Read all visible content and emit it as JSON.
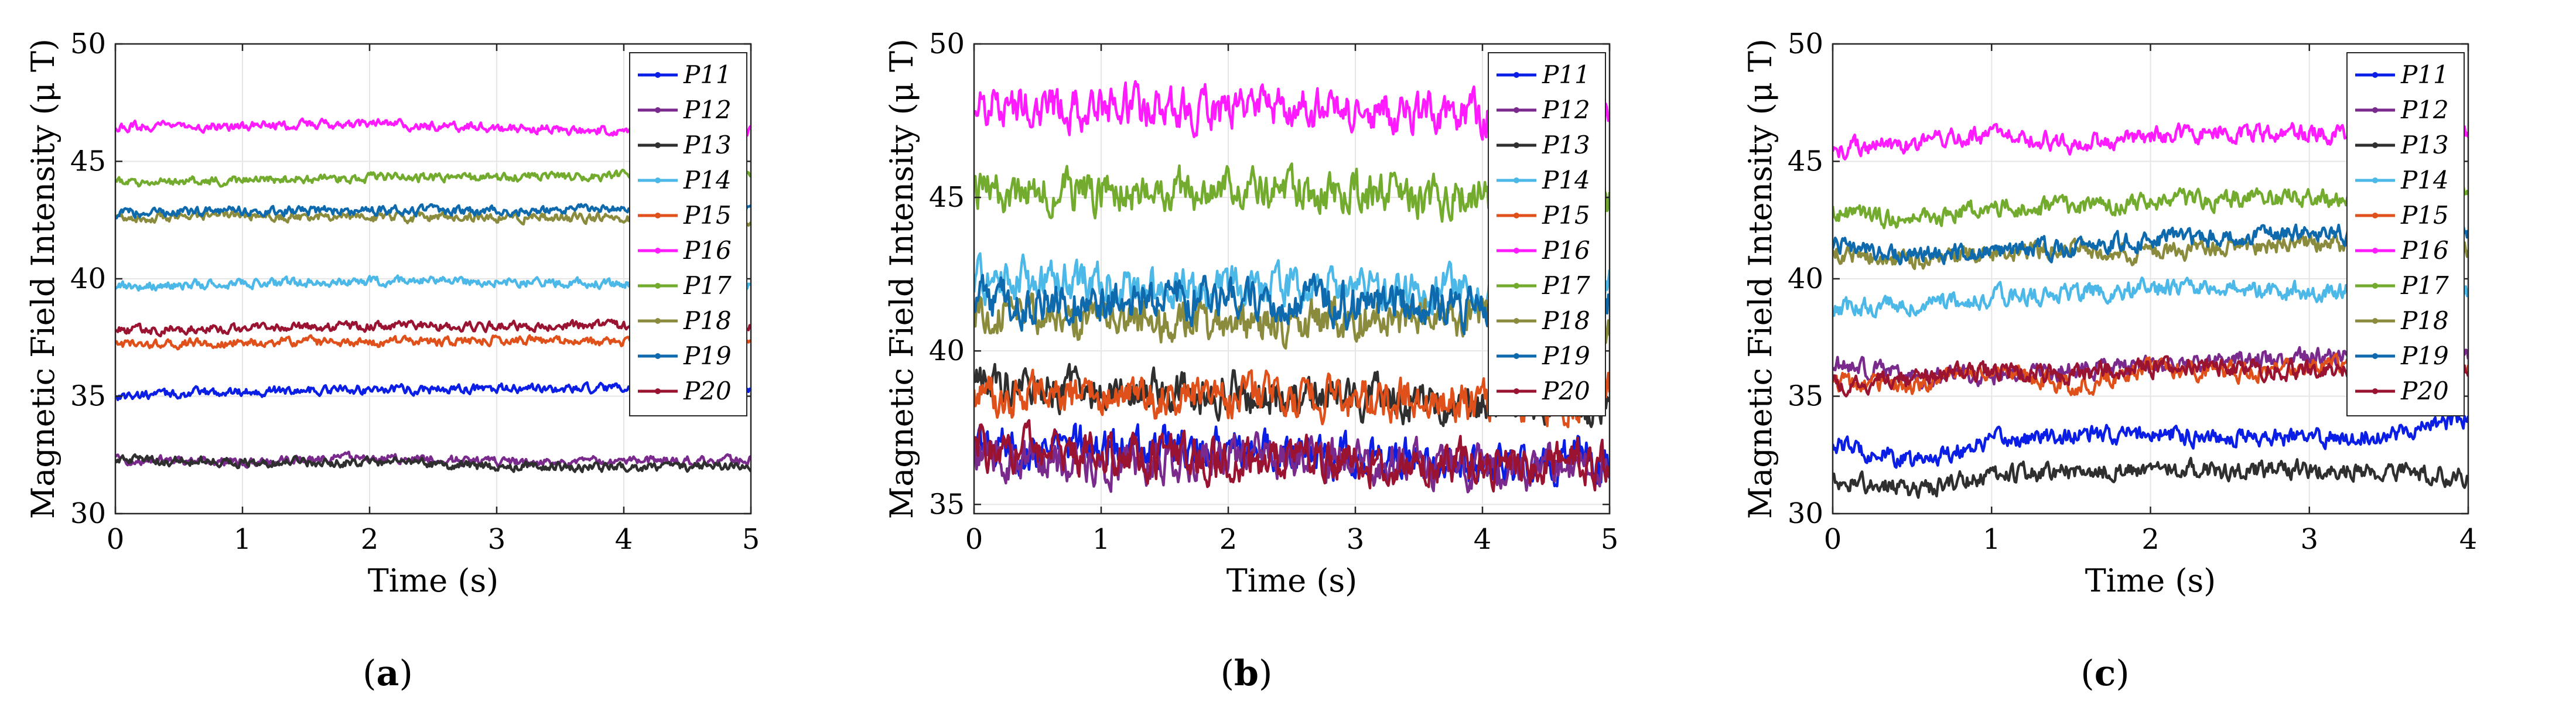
{
  "figure": {
    "captions": [
      "(a)",
      "(b)",
      "(c)"
    ],
    "caption_letters": [
      "a",
      "b",
      "c"
    ]
  },
  "series_styles": [
    {
      "name": "P11",
      "color": "#0a1ee6"
    },
    {
      "name": "P12",
      "color": "#7a2a8c"
    },
    {
      "name": "P13",
      "color": "#2f2f2f"
    },
    {
      "name": "P14",
      "color": "#4cb8e8"
    },
    {
      "name": "P15",
      "color": "#e0501a"
    },
    {
      "name": "P16",
      "color": "#ff1aff"
    },
    {
      "name": "P17",
      "color": "#72ab2d"
    },
    {
      "name": "P18",
      "color": "#8a8b3c"
    },
    {
      "name": "P19",
      "color": "#0e6aad"
    },
    {
      "name": "P20",
      "color": "#9a1432"
    }
  ],
  "chart_data": [
    {
      "type": "line",
      "panel": "a",
      "title": "",
      "xlabel": "Time (s)",
      "ylabel": "Magnetic Field Intensity (μ T)",
      "xlim": [
        0,
        5
      ],
      "ylim": [
        30,
        50
      ],
      "xticks": [
        "0",
        "1",
        "2",
        "3",
        "4",
        "5"
      ],
      "yticks": [
        "30",
        "35",
        "40",
        "45",
        "50"
      ],
      "grid": true,
      "legend_position": "top-right",
      "noise_amplitude": 0.35,
      "series": [
        {
          "name": "P11",
          "t": [
            0,
            1,
            2,
            3,
            4,
            5
          ],
          "values": [
            35.0,
            35.2,
            35.3,
            35.3,
            35.3,
            35.3
          ]
        },
        {
          "name": "P12",
          "t": [
            0,
            1,
            2,
            3,
            4,
            5
          ],
          "values": [
            32.3,
            32.2,
            32.4,
            32.2,
            32.2,
            32.3
          ]
        },
        {
          "name": "P13",
          "t": [
            0,
            1,
            2,
            3,
            4,
            5
          ],
          "values": [
            32.3,
            32.2,
            32.2,
            32.0,
            32.0,
            32.0
          ]
        },
        {
          "name": "P14",
          "t": [
            0,
            1,
            2,
            3,
            4,
            5
          ],
          "values": [
            39.7,
            39.8,
            39.9,
            39.9,
            39.8,
            39.8
          ]
        },
        {
          "name": "P15",
          "t": [
            0,
            1,
            2,
            3,
            4,
            5
          ],
          "values": [
            37.2,
            37.3,
            37.3,
            37.4,
            37.3,
            37.3
          ]
        },
        {
          "name": "P16",
          "t": [
            0,
            1,
            2,
            3,
            4,
            5
          ],
          "values": [
            46.5,
            46.5,
            46.6,
            46.4,
            46.3,
            46.3
          ]
        },
        {
          "name": "P17",
          "t": [
            0,
            1,
            2,
            3,
            4,
            5
          ],
          "values": [
            44.1,
            44.2,
            44.3,
            44.3,
            44.4,
            44.5
          ]
        },
        {
          "name": "P18",
          "t": [
            0,
            1,
            2,
            3,
            4,
            5
          ],
          "values": [
            42.6,
            42.7,
            42.6,
            42.6,
            42.6,
            42.5
          ]
        },
        {
          "name": "P19",
          "t": [
            0,
            1,
            2,
            3,
            4,
            5
          ],
          "values": [
            42.8,
            42.9,
            42.9,
            42.9,
            43.0,
            43.0
          ]
        },
        {
          "name": "P20",
          "t": [
            0,
            1,
            2,
            3,
            4,
            5
          ],
          "values": [
            37.8,
            37.9,
            38.0,
            38.0,
            38.0,
            38.0
          ]
        }
      ]
    },
    {
      "type": "line",
      "panel": "b",
      "title": "",
      "xlabel": "Time (s)",
      "ylabel": "Magnetic Field Intensity (μ T)",
      "xlim": [
        0,
        5
      ],
      "ylim": [
        34.7,
        50
      ],
      "xticks": [
        "0",
        "1",
        "2",
        "3",
        "4",
        "5"
      ],
      "yticks": [
        "35",
        "40",
        "45",
        "50"
      ],
      "grid": true,
      "legend_position": "top-right",
      "noise_amplitude": 1.2,
      "series": [
        {
          "name": "P11",
          "t": [
            0,
            1,
            2,
            3,
            4,
            5
          ],
          "values": [
            36.8,
            36.9,
            36.8,
            36.5,
            36.3,
            36.5
          ]
        },
        {
          "name": "P12",
          "t": [
            0,
            1,
            2,
            3,
            4,
            5
          ],
          "values": [
            36.7,
            36.3,
            36.6,
            36.4,
            36.2,
            36.3
          ]
        },
        {
          "name": "P13",
          "t": [
            0,
            1,
            2,
            3,
            4,
            5
          ],
          "values": [
            39.0,
            38.7,
            38.6,
            38.5,
            38.3,
            38.2
          ]
        },
        {
          "name": "P14",
          "t": [
            0,
            1,
            2,
            3,
            4,
            5
          ],
          "values": [
            42.3,
            42.2,
            42.0,
            42.1,
            41.9,
            42.0
          ]
        },
        {
          "name": "P15",
          "t": [
            0,
            1,
            2,
            3,
            4,
            5
          ],
          "values": [
            38.5,
            38.5,
            38.6,
            38.4,
            38.4,
            38.5
          ]
        },
        {
          "name": "P16",
          "t": [
            0,
            1,
            2,
            3,
            4,
            5
          ],
          "values": [
            48.0,
            47.9,
            47.9,
            47.8,
            47.7,
            47.7
          ]
        },
        {
          "name": "P17",
          "t": [
            0,
            1,
            2,
            3,
            4,
            5
          ],
          "values": [
            45.2,
            45.2,
            45.3,
            45.1,
            45.0,
            45.0
          ]
        },
        {
          "name": "P18",
          "t": [
            0,
            1,
            2,
            3,
            4,
            5
          ],
          "values": [
            41.3,
            41.0,
            40.8,
            41.0,
            41.1,
            40.9
          ]
        },
        {
          "name": "P19",
          "t": [
            0,
            1,
            2,
            3,
            4,
            5
          ],
          "values": [
            41.7,
            41.6,
            41.7,
            41.5,
            41.4,
            41.5
          ]
        },
        {
          "name": "P20",
          "t": [
            0,
            1,
            2,
            3,
            4,
            5
          ],
          "values": [
            36.9,
            36.6,
            36.5,
            36.4,
            36.3,
            36.3
          ]
        }
      ]
    },
    {
      "type": "line",
      "panel": "c",
      "title": "",
      "xlabel": "Time (s)",
      "ylabel": "Magnetic Field Intensity (μ T)",
      "xlim": [
        0,
        4
      ],
      "ylim": [
        30,
        50
      ],
      "xticks": [
        "0",
        "1",
        "2",
        "3",
        "4"
      ],
      "yticks": [
        "30",
        "35",
        "40",
        "45",
        "50"
      ],
      "grid": true,
      "legend_position": "top-right",
      "noise_amplitude": 0.7,
      "series": [
        {
          "name": "P11",
          "t": [
            0,
            0.5,
            1,
            1.5,
            2,
            2.5,
            3,
            3.5,
            4
          ],
          "values": [
            33.0,
            32.2,
            33.1,
            33.3,
            33.4,
            33.3,
            33.2,
            33.4,
            34.1
          ]
        },
        {
          "name": "P12",
          "t": [
            0,
            0.5,
            1,
            1.5,
            2,
            2.5,
            3,
            3.5,
            4
          ],
          "values": [
            36.4,
            35.8,
            35.9,
            36.1,
            36.3,
            36.5,
            36.7,
            36.6,
            36.8
          ]
        },
        {
          "name": "P13",
          "t": [
            0,
            0.5,
            1,
            1.5,
            2,
            2.5,
            3,
            3.5,
            4
          ],
          "values": [
            31.5,
            31.0,
            31.6,
            31.8,
            31.9,
            31.8,
            31.9,
            31.8,
            31.6
          ]
        },
        {
          "name": "P14",
          "t": [
            0,
            0.5,
            1,
            1.5,
            2,
            2.5,
            3,
            3.5,
            4
          ],
          "values": [
            38.8,
            38.9,
            39.2,
            39.4,
            39.6,
            39.6,
            39.5,
            39.5,
            39.4
          ]
        },
        {
          "name": "P15",
          "t": [
            0,
            0.5,
            1,
            1.5,
            2,
            2.5,
            3,
            3.5,
            4
          ],
          "values": [
            35.6,
            35.5,
            36.2,
            35.4,
            36.2,
            36.0,
            36.3,
            36.1,
            36.2
          ]
        },
        {
          "name": "P16",
          "t": [
            0,
            0.5,
            1,
            1.5,
            2,
            2.5,
            3,
            3.5,
            4
          ],
          "values": [
            45.5,
            45.8,
            46.1,
            45.8,
            46.1,
            46.2,
            46.2,
            46.2,
            46.3
          ]
        },
        {
          "name": "P17",
          "t": [
            0,
            0.5,
            1,
            1.5,
            2,
            2.5,
            3,
            3.5,
            4
          ],
          "values": [
            42.8,
            42.5,
            43.1,
            43.0,
            43.3,
            43.4,
            43.5,
            43.4,
            43.5
          ]
        },
        {
          "name": "P18",
          "t": [
            0,
            0.5,
            1,
            1.5,
            2,
            2.5,
            3,
            3.5,
            4
          ],
          "values": [
            41.2,
            40.8,
            41.1,
            41.3,
            41.0,
            41.4,
            41.5,
            41.4,
            41.3
          ]
        },
        {
          "name": "P19",
          "t": [
            0,
            0.5,
            1,
            1.5,
            2,
            2.5,
            3,
            3.5,
            4
          ],
          "values": [
            41.5,
            41.0,
            41.2,
            41.3,
            41.6,
            41.8,
            42.0,
            41.9,
            41.8
          ]
        },
        {
          "name": "P20",
          "t": [
            0,
            0.5,
            1,
            1.5,
            2,
            2.5,
            3,
            3.5,
            4
          ],
          "values": [
            35.5,
            35.8,
            36.1,
            35.9,
            36.3,
            36.2,
            36.1,
            36.2,
            36.0
          ]
        }
      ]
    }
  ]
}
